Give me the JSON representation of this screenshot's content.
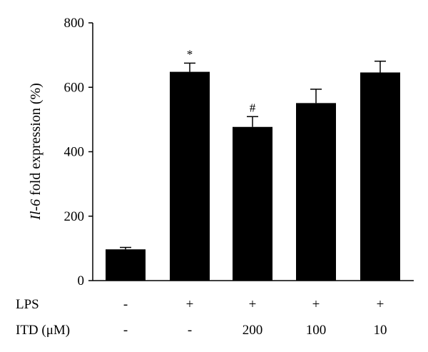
{
  "chart_data": {
    "type": "bar",
    "ylabel_italic": "Il-6",
    "ylabel_rest": " fold expression (%)",
    "ylim": [
      0,
      800
    ],
    "yticks": [
      0,
      200,
      400,
      600,
      800
    ],
    "values": [
      97,
      648,
      477,
      551,
      646
    ],
    "errors": [
      6,
      27,
      32,
      43,
      35
    ],
    "annotations": [
      "",
      "*",
      "#",
      "",
      ""
    ],
    "bar_color": "#000000",
    "grid": false,
    "condition_rows": [
      {
        "label": "LPS",
        "values": [
          "-",
          "+",
          "+",
          "+",
          "+"
        ]
      },
      {
        "label": "ITD (μM)",
        "values": [
          "-",
          "-",
          "200",
          "100",
          "10"
        ]
      }
    ]
  }
}
